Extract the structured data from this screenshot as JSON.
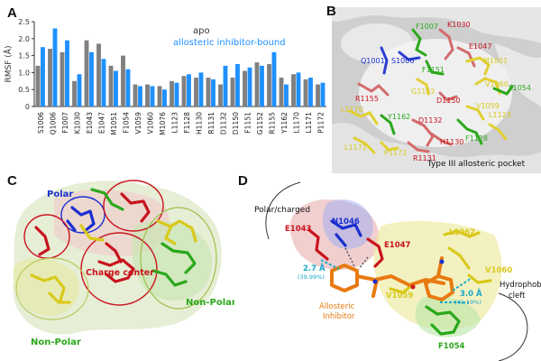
{
  "figure": {
    "panels": [
      "A",
      "B",
      "C",
      "D"
    ],
    "colors": {
      "apo": "#808080",
      "bound": "#1e90ff",
      "polar_blue": "#1a2fd0",
      "charged_red": "#c8141e",
      "nonpolar_green": "#2aa81a",
      "hydrophobic_yellow": "#d9c91a",
      "inhibitor_orange": "#e87a10",
      "distance_cyan": "#1aa8c8"
    }
  },
  "chart_data": {
    "type": "bar",
    "ylabel": "RMSF (Å)",
    "ylim": [
      0,
      2.5
    ],
    "yticks": [
      0,
      0.5,
      1.0,
      1.5,
      2.0,
      2.5
    ],
    "ytick_labels": [
      "0",
      "0.5",
      "1.0",
      "1.5",
      "2.0",
      "2.5"
    ],
    "legend_placement": "top-right",
    "categories": [
      "S1006",
      "Q1006",
      "F1007",
      "K1030",
      "E1043",
      "E1047",
      "M1051",
      "F1054",
      "V1059",
      "V1060",
      "M1076",
      "L1123",
      "F1128",
      "H1130",
      "R1131",
      "D1132",
      "D1150",
      "F1151",
      "G1152",
      "R1155",
      "Y1162",
      "L1170",
      "L1171",
      "P1172"
    ],
    "series": [
      {
        "name": "apo",
        "values": [
          1.2,
          1.7,
          1.6,
          0.75,
          1.95,
          1.85,
          1.2,
          1.5,
          0.65,
          0.65,
          0.6,
          0.75,
          0.9,
          0.85,
          0.85,
          0.65,
          0.85,
          1.05,
          1.3,
          1.25,
          0.85,
          0.95,
          0.8,
          0.65
        ]
      },
      {
        "name": "allosteric inhibitor-bound",
        "values": [
          1.75,
          2.3,
          1.95,
          0.95,
          1.6,
          1.4,
          1.05,
          1.1,
          0.6,
          0.6,
          0.5,
          0.7,
          0.95,
          1.0,
          0.8,
          1.2,
          1.25,
          1.15,
          1.2,
          1.6,
          0.65,
          1.0,
          0.85,
          0.7
        ]
      }
    ]
  },
  "panelB": {
    "caption": "Type III allosteric pocket",
    "labels": [
      {
        "text": "F1007",
        "color": "#2aa81a"
      },
      {
        "text": "K1030",
        "color": "#c8141e"
      },
      {
        "text": "Q1001",
        "color": "#1a2fd0"
      },
      {
        "text": "S1006",
        "color": "#1a2fd0"
      },
      {
        "text": "E1047",
        "color": "#c8141e"
      },
      {
        "text": "M1051",
        "color": "#d9c91a"
      },
      {
        "text": "F1151",
        "color": "#2aa81a"
      },
      {
        "text": "G1152",
        "color": "#d9c91a"
      },
      {
        "text": "V1060",
        "color": "#d9c91a"
      },
      {
        "text": "F1054",
        "color": "#2aa81a"
      },
      {
        "text": "R1155",
        "color": "#c8141e"
      },
      {
        "text": "D1150",
        "color": "#c8141e"
      },
      {
        "text": "V1059",
        "color": "#d9c91a"
      },
      {
        "text": "L1170",
        "color": "#d9c91a"
      },
      {
        "text": "Y1162",
        "color": "#2aa81a"
      },
      {
        "text": "D1132",
        "color": "#c8141e"
      },
      {
        "text": "F1128",
        "color": "#2aa81a"
      },
      {
        "text": "L1171",
        "color": "#d9c91a"
      },
      {
        "text": "P1172",
        "color": "#d9c91a"
      },
      {
        "text": "H1130",
        "color": "#c8141e"
      },
      {
        "text": "L1123",
        "color": "#d9c91a"
      },
      {
        "text": "R1131",
        "color": "#c8141e"
      }
    ]
  },
  "panelC": {
    "polar": "Polar",
    "charge_center": "Charge center",
    "non_polar_right": "Non-Polar",
    "non_polar_left": "Non-Polar"
  },
  "panelD": {
    "polar_charged": "Polar/charged",
    "hydrophobic_cleft": "Hydrophobic cleft",
    "allosteric_inhibitor": "Allosteric Inhibitor",
    "residues": [
      {
        "text": "N1046",
        "color": "#1a2fd0"
      },
      {
        "text": "E1043",
        "color": "#c8141e"
      },
      {
        "text": "E1047",
        "color": "#c8141e"
      },
      {
        "text": "L1062",
        "color": "#d9c91a"
      },
      {
        "text": "V1060",
        "color": "#d9c91a"
      },
      {
        "text": "V1059",
        "color": "#d9c91a"
      },
      {
        "text": "F1054",
        "color": "#2aa81a"
      }
    ],
    "distances": [
      {
        "value": "2.7 Å",
        "occupancy": "(39.99%)"
      },
      {
        "value": "3.0 Å",
        "occupancy": "(41.19%)"
      }
    ]
  }
}
